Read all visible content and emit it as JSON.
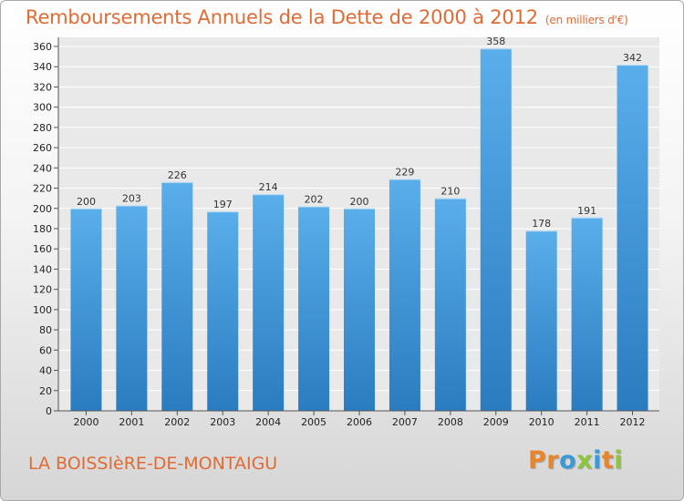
{
  "title": "Remboursements Annuels de la Dette de 2000 à 2012",
  "unit_note": "(en milliers d'€)",
  "place": "LA BOISSIèRE-DE-MONTAIGU",
  "logo": {
    "text": "Proxiti",
    "letter_colors": [
      "#e8852a",
      "#e8852a",
      "#3a9ad9",
      "#8cc63f",
      "#3a9ad9",
      "#e8852a",
      "#8cc63f"
    ]
  },
  "colors": {
    "title": "#e06b35",
    "bar_top": "#5aaeea",
    "bar_bottom": "#2a7cc0",
    "grid": "#ffffff"
  },
  "chart_data": {
    "type": "bar",
    "categories": [
      "2000",
      "2001",
      "2002",
      "2003",
      "2004",
      "2005",
      "2006",
      "2007",
      "2008",
      "2009",
      "2010",
      "2011",
      "2012"
    ],
    "values": [
      200,
      203,
      226,
      197,
      214,
      202,
      200,
      229,
      210,
      358,
      178,
      191,
      342
    ],
    "ylim": [
      0,
      360
    ],
    "ytick_step": 20,
    "title": "Remboursements Annuels de la Dette de 2000 à 2012",
    "xlabel": "",
    "ylabel": "",
    "grid": true,
    "data_labels": true
  }
}
